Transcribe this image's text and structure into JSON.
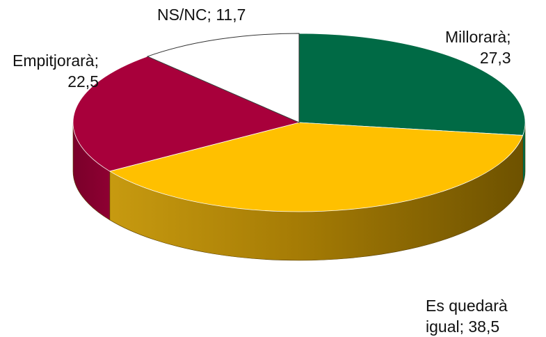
{
  "chart_data": {
    "type": "pie",
    "title": "",
    "categories": [
      "Millorarà",
      "Es quedarà igual",
      "Empitjorarà",
      "NS/NC"
    ],
    "values": [
      27.3,
      38.5,
      22.5,
      11.7
    ],
    "colors": [
      "#006A45",
      "#FFC000",
      "#A8003B",
      "#FFFFFF"
    ],
    "labels": {
      "millorara": {
        "line1": "Millorarà;",
        "line2": "27,3"
      },
      "igual": {
        "line1": "Es quedarà",
        "line2": "igual; 38,5"
      },
      "empitjorara": {
        "line1": "Empitjorarà;",
        "line2": "22,5"
      },
      "nsnc": {
        "line1": "NS/NC; 11,7"
      }
    }
  }
}
